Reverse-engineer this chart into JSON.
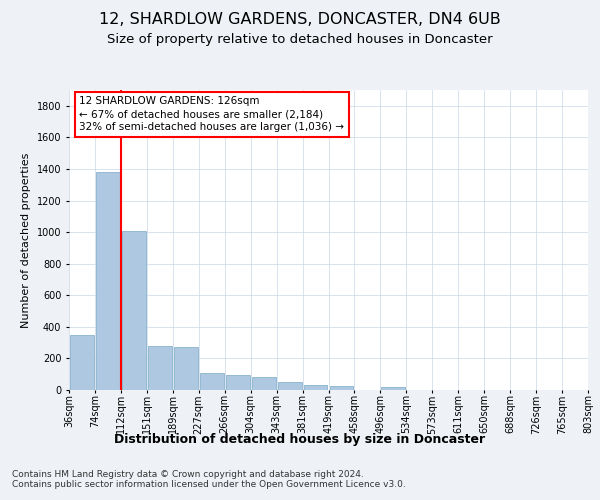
{
  "title1": "12, SHARDLOW GARDENS, DONCASTER, DN4 6UB",
  "title2": "Size of property relative to detached houses in Doncaster",
  "xlabel": "Distribution of detached houses by size in Doncaster",
  "ylabel": "Number of detached properties",
  "bar_color": "#adc8e0",
  "bar_edge_color": "#7aaac8",
  "vline_color": "red",
  "annotation_text": "12 SHARDLOW GARDENS: 126sqm\n← 67% of detached houses are smaller (2,184)\n32% of semi-detached houses are larger (1,036) →",
  "bin_edges": [
    36,
    74,
    112,
    151,
    189,
    227,
    266,
    304,
    343,
    381,
    419,
    458,
    496,
    534,
    573,
    611,
    650,
    688,
    726,
    765,
    803
  ],
  "bin_labels": [
    "36sqm",
    "74sqm",
    "112sqm",
    "151sqm",
    "189sqm",
    "227sqm",
    "266sqm",
    "304sqm",
    "343sqm",
    "381sqm",
    "419sqm",
    "458sqm",
    "496sqm",
    "534sqm",
    "573sqm",
    "611sqm",
    "650sqm",
    "688sqm",
    "726sqm",
    "765sqm",
    "803sqm"
  ],
  "values": [
    350,
    1380,
    1010,
    280,
    275,
    110,
    95,
    85,
    50,
    30,
    28,
    0,
    18,
    0,
    0,
    0,
    0,
    0,
    0,
    0
  ],
  "vline_bin_index": 2,
  "ylim": [
    0,
    1900
  ],
  "yticks": [
    0,
    200,
    400,
    600,
    800,
    1000,
    1200,
    1400,
    1600,
    1800
  ],
  "background_color": "#eef2f7",
  "plot_bg_color": "#ffffff",
  "grid_color": "#c8d8e8",
  "footer": "Contains HM Land Registry data © Crown copyright and database right 2024.\nContains public sector information licensed under the Open Government Licence v3.0.",
  "annotation_box_facecolor": "#ffffff",
  "annotation_box_edgecolor": "red",
  "title1_fontsize": 11.5,
  "title2_fontsize": 9.5,
  "xlabel_fontsize": 9,
  "ylabel_fontsize": 8,
  "tick_fontsize": 7,
  "annotation_fontsize": 7.5,
  "footer_fontsize": 6.5
}
